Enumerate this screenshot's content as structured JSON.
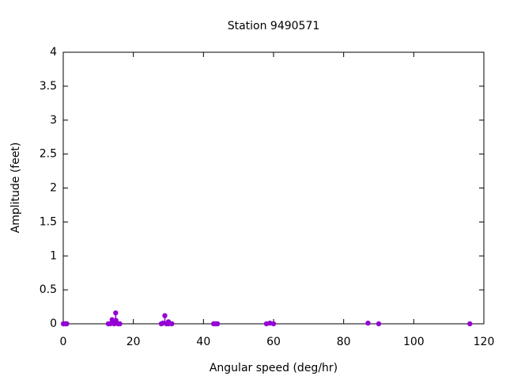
{
  "chart_data": {
    "type": "scatter",
    "title": "Station 9490571",
    "xlabel": "Angular speed (deg/hr)",
    "ylabel": "Amplitude (feet)",
    "series": [
      {
        "color": "#9400d3",
        "x": [
          0.04,
          0.08,
          0.5,
          1.0,
          12.85,
          13.4,
          13.94,
          14.5,
          14.96,
          15.04,
          15.59,
          16.14,
          27.97,
          28.44,
          28.98,
          29.46,
          30.0,
          30.08,
          31.0,
          42.9,
          43.5,
          44.0,
          57.97,
          58.98,
          60.0,
          86.95,
          90.0,
          116.0
        ],
        "values": [
          0.0,
          0.0,
          0.0,
          0.0,
          0.0,
          0.0,
          0.06,
          0.0,
          0.16,
          0.05,
          0.0,
          0.0,
          0.0,
          0.01,
          0.12,
          0.0,
          0.03,
          0.0,
          0.0,
          0.0,
          0.0,
          0.0,
          0.0,
          0.01,
          0.0,
          0.01,
          0.0,
          0.0
        ]
      }
    ],
    "xlim": [
      0,
      120
    ],
    "xticks": [
      0,
      20,
      40,
      60,
      80,
      100,
      120
    ],
    "ylim": [
      0,
      4
    ],
    "yticks": [
      0,
      0.5,
      1,
      1.5,
      2,
      2.5,
      3,
      3.5,
      4
    ]
  }
}
